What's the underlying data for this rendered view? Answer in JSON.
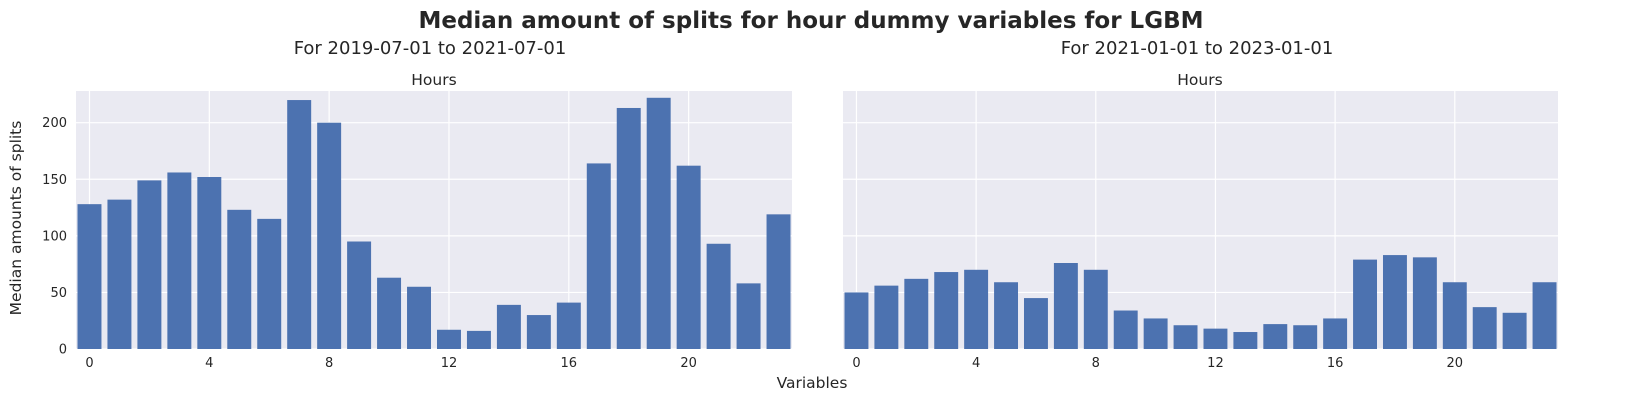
{
  "figure": {
    "suptitle": "Median amount of splits for hour dummy variables for LGBM",
    "xlabel": "Variables",
    "ylabel": "Median amounts of splits"
  },
  "colors": {
    "bar": "#4c72b0",
    "plot_background": "#eaeaf2",
    "grid": "#ffffff"
  },
  "chart_data": [
    {
      "type": "bar",
      "subtitle": "For 2019-07-01 to 2021-07-01",
      "title": "Hours",
      "xlabel": "Variables",
      "ylabel": "Median amounts of splits",
      "categories": [
        0,
        1,
        2,
        3,
        4,
        5,
        6,
        7,
        8,
        9,
        10,
        11,
        12,
        13,
        14,
        15,
        16,
        17,
        18,
        19,
        20,
        21,
        22,
        23
      ],
      "values": [
        128,
        132,
        149,
        156,
        152,
        123,
        115,
        220,
        200,
        95,
        63,
        55,
        17,
        16,
        39,
        30,
        41,
        164,
        213,
        222,
        162,
        93,
        58,
        119
      ],
      "xticks": [
        0,
        4,
        8,
        12,
        16,
        20
      ],
      "yticks": [
        0,
        50,
        100,
        150,
        200
      ],
      "ylim": [
        0,
        228
      ],
      "grid": true
    },
    {
      "type": "bar",
      "subtitle": "For 2021-01-01 to 2023-01-01",
      "title": "Hours",
      "xlabel": "Variables",
      "ylabel": "",
      "categories": [
        0,
        1,
        2,
        3,
        4,
        5,
        6,
        7,
        8,
        9,
        10,
        11,
        12,
        13,
        14,
        15,
        16,
        17,
        18,
        19,
        20,
        21,
        22,
        23
      ],
      "values": [
        50,
        56,
        62,
        68,
        70,
        59,
        45,
        76,
        70,
        34,
        27,
        21,
        18,
        15,
        22,
        21,
        27,
        79,
        83,
        81,
        59,
        37,
        32,
        59
      ],
      "xticks": [
        0,
        4,
        8,
        12,
        16,
        20
      ],
      "yticks": [
        0,
        50,
        100,
        150,
        200
      ],
      "ylim": [
        0,
        228
      ],
      "grid": true
    }
  ]
}
